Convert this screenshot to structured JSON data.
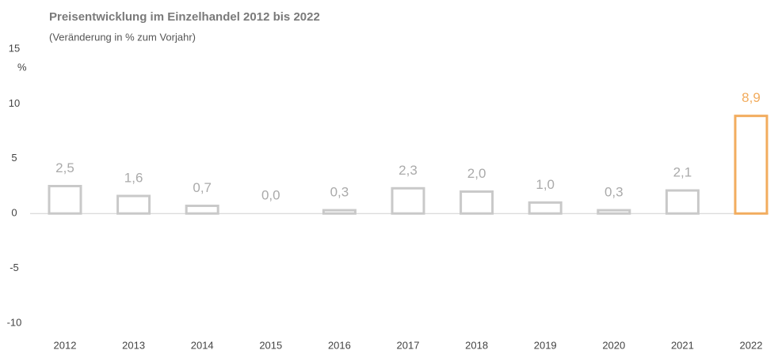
{
  "chart_data": {
    "type": "bar",
    "title": "Preisentwicklung im Einzelhandel 2012 bis 2022",
    "subtitle": "(Veränderung   in % zum Vorjahr)",
    "y_axis_label": "%",
    "categories": [
      "2012",
      "2013",
      "2014",
      "2015",
      "2016",
      "2017",
      "2018",
      "2019",
      "2020",
      "2021",
      "2022"
    ],
    "values": [
      2.5,
      1.6,
      0.7,
      0.0,
      0.3,
      2.3,
      2.0,
      1.0,
      0.3,
      2.1,
      8.9
    ],
    "value_labels": [
      "2,5",
      "1,6",
      "0,7",
      "0,0",
      "0,3",
      "2,3",
      "2,0",
      "1,0",
      "0,3",
      "2,1",
      "8,9"
    ],
    "colors": [
      "#c9c9c9",
      "#c9c9c9",
      "#c9c9c9",
      "#c9c9c9",
      "#c9c9c9",
      "#c9c9c9",
      "#c9c9c9",
      "#c9c9c9",
      "#c9c9c9",
      "#c9c9c9",
      "#f2ac5e"
    ],
    "ylim": [
      -10,
      15
    ],
    "yticks": [
      -10,
      -5,
      0,
      5,
      10,
      15
    ],
    "grid": false
  }
}
